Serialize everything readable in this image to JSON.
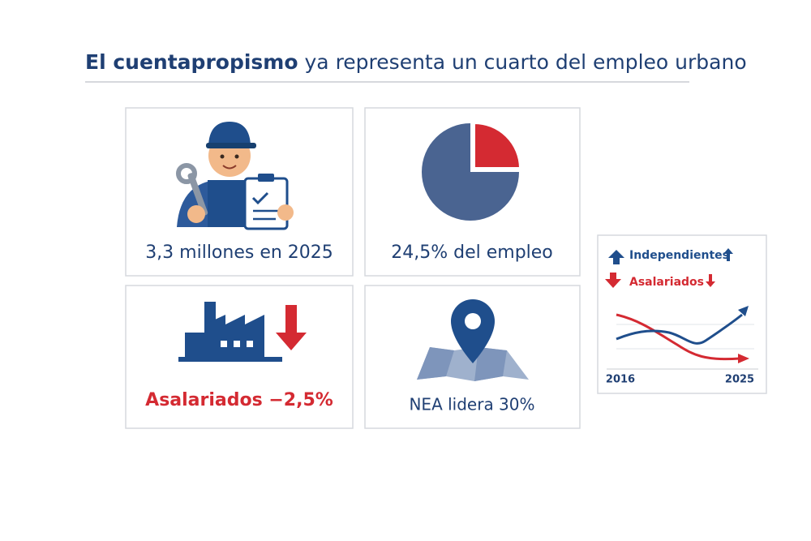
{
  "header": {
    "title_emphasis": "El cuentapropismo",
    "title_rest": "ya representa un cuarto del empleo urbano"
  },
  "cards": [
    {
      "text": "3,3 millones en 2025"
    },
    {
      "text": "24,5% del empleo"
    },
    {
      "text": "Asalariados −2,5%"
    },
    {
      "text": "NEA lidera 30%"
    }
  ],
  "mini_chart": {
    "legend": [
      "Independientes",
      "Asalariados"
    ],
    "x_labels": [
      "2016",
      "2025"
    ]
  }
}
